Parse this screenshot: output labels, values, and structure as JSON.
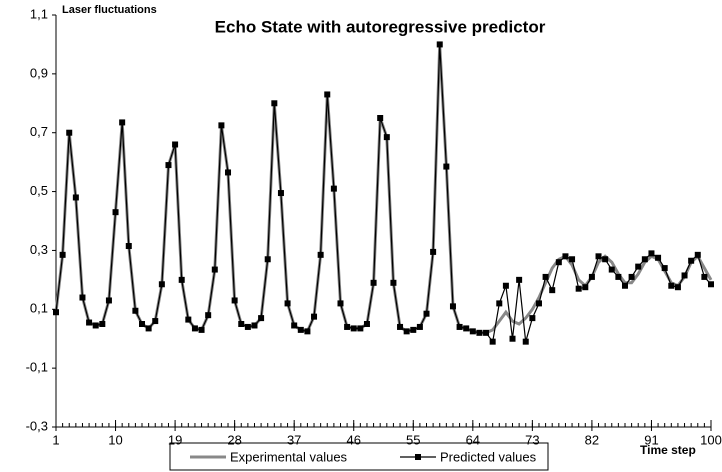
{
  "chart_data": {
    "type": "line",
    "title": "Echo State with autoregressive predictor",
    "y_label": "Laser fluctuations",
    "x_label": "Time step",
    "x": [
      1,
      2,
      3,
      4,
      5,
      6,
      7,
      8,
      9,
      10,
      11,
      12,
      13,
      14,
      15,
      16,
      17,
      18,
      19,
      20,
      21,
      22,
      23,
      24,
      25,
      26,
      27,
      28,
      29,
      30,
      31,
      32,
      33,
      34,
      35,
      36,
      37,
      38,
      39,
      40,
      41,
      42,
      43,
      44,
      45,
      46,
      47,
      48,
      49,
      50,
      51,
      52,
      53,
      54,
      55,
      56,
      57,
      58,
      59,
      60,
      61,
      62,
      63,
      64,
      65,
      66,
      67,
      68,
      69,
      70,
      71,
      72,
      73,
      74,
      75,
      76,
      77,
      78,
      79,
      80,
      81,
      82,
      83,
      84,
      85,
      86,
      87,
      88,
      89,
      90,
      91,
      92,
      93,
      94,
      95,
      96,
      97,
      98,
      99,
      100
    ],
    "series": [
      {
        "name": "Experimental values",
        "color": "#888888",
        "marker": false,
        "values": [
          0.09,
          0.285,
          0.7,
          0.48,
          0.14,
          0.055,
          0.045,
          0.05,
          0.13,
          0.43,
          0.735,
          0.315,
          0.095,
          0.05,
          0.035,
          0.06,
          0.185,
          0.59,
          0.66,
          0.2,
          0.065,
          0.035,
          0.03,
          0.08,
          0.235,
          0.725,
          0.565,
          0.13,
          0.05,
          0.04,
          0.045,
          0.07,
          0.27,
          0.8,
          0.495,
          0.12,
          0.045,
          0.03,
          0.025,
          0.075,
          0.285,
          0.83,
          0.51,
          0.12,
          0.04,
          0.035,
          0.035,
          0.05,
          0.19,
          0.75,
          0.685,
          0.19,
          0.04,
          0.025,
          0.03,
          0.04,
          0.085,
          0.295,
          1.0,
          0.585,
          0.11,
          0.04,
          0.035,
          0.025,
          0.02,
          0.02,
          0.03,
          0.06,
          0.09,
          0.06,
          0.05,
          0.07,
          0.1,
          0.14,
          0.19,
          0.24,
          0.27,
          0.28,
          0.25,
          0.2,
          0.18,
          0.21,
          0.26,
          0.28,
          0.26,
          0.22,
          0.19,
          0.19,
          0.22,
          0.26,
          0.28,
          0.27,
          0.23,
          0.19,
          0.18,
          0.21,
          0.26,
          0.28,
          0.24,
          0.2
        ]
      },
      {
        "name": "Predicted values",
        "color": "#000000",
        "marker": true,
        "values": [
          0.09,
          0.285,
          0.7,
          0.48,
          0.14,
          0.055,
          0.045,
          0.05,
          0.13,
          0.43,
          0.735,
          0.315,
          0.095,
          0.05,
          0.035,
          0.06,
          0.185,
          0.59,
          0.66,
          0.2,
          0.065,
          0.035,
          0.03,
          0.08,
          0.235,
          0.725,
          0.565,
          0.13,
          0.05,
          0.04,
          0.045,
          0.07,
          0.27,
          0.8,
          0.495,
          0.12,
          0.045,
          0.03,
          0.025,
          0.075,
          0.285,
          0.83,
          0.51,
          0.12,
          0.04,
          0.035,
          0.035,
          0.05,
          0.19,
          0.75,
          0.685,
          0.19,
          0.04,
          0.025,
          0.03,
          0.04,
          0.085,
          0.295,
          1.0,
          0.585,
          0.11,
          0.04,
          0.035,
          0.025,
          0.02,
          0.02,
          -0.01,
          0.12,
          0.18,
          0.0,
          0.2,
          -0.01,
          0.07,
          0.12,
          0.21,
          0.165,
          0.26,
          0.28,
          0.27,
          0.17,
          0.175,
          0.21,
          0.28,
          0.27,
          0.235,
          0.21,
          0.18,
          0.21,
          0.245,
          0.27,
          0.29,
          0.275,
          0.24,
          0.18,
          0.175,
          0.215,
          0.265,
          0.285,
          0.21,
          0.185
        ]
      }
    ],
    "xlim": [
      1,
      100
    ],
    "xticks": [
      1,
      10,
      19,
      28,
      37,
      46,
      55,
      64,
      73,
      82,
      91,
      100
    ],
    "ylim": [
      -0.3,
      1.1
    ],
    "yticks": [
      {
        "value": -0.3,
        "label": "-0,3"
      },
      {
        "value": -0.1,
        "label": "-0,1"
      },
      {
        "value": 0.1,
        "label": "0,1"
      },
      {
        "value": 0.3,
        "label": "0,3"
      },
      {
        "value": 0.5,
        "label": "0,5"
      },
      {
        "value": 0.7,
        "label": "0,7"
      },
      {
        "value": 0.9,
        "label": "0,9"
      },
      {
        "value": 1.1,
        "label": "1,1"
      }
    ],
    "legend": "bottom"
  }
}
